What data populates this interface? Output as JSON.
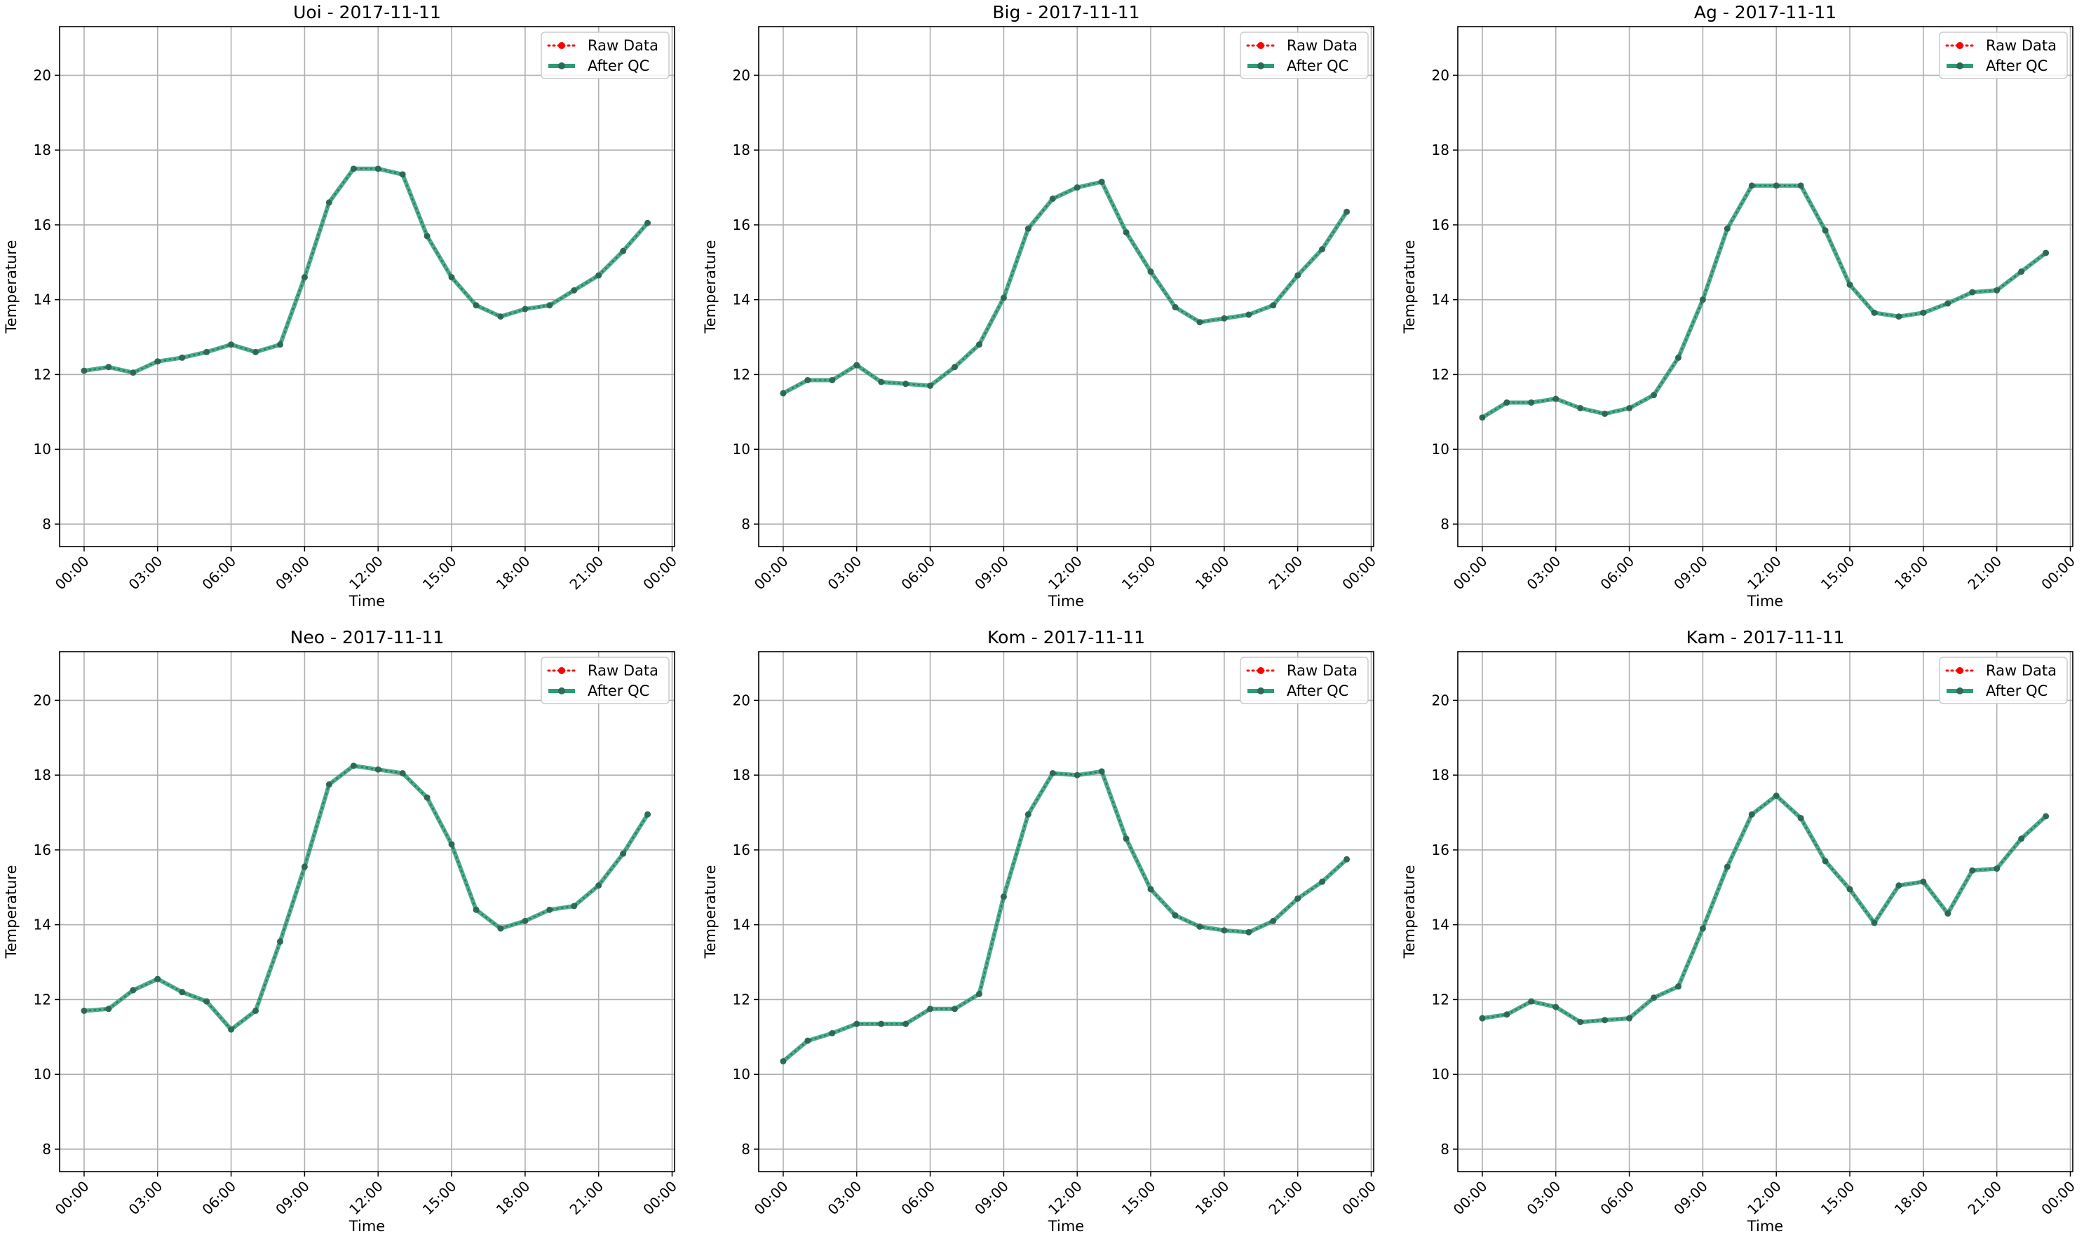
{
  "figure": {
    "axes_style": {
      "ylim": [
        7.4,
        21.3
      ],
      "yticks": [
        8,
        10,
        12,
        14,
        16,
        18,
        20
      ],
      "xlim_hours": [
        -1,
        24.1
      ],
      "xtick_hours": [
        0,
        3,
        6,
        9,
        12,
        15,
        18,
        21,
        24
      ],
      "xtick_labels": [
        "00:00",
        "03:00",
        "06:00",
        "09:00",
        "12:00",
        "15:00",
        "18:00",
        "21:00",
        "00:00"
      ],
      "xlabel": "Time",
      "ylabel": "Temperature",
      "grid": true,
      "legend_placement": "top-right",
      "raw_color": "#ff0000",
      "qc_color": "#2a9d78",
      "marker_color": "#2e6b55"
    },
    "legend": {
      "raw_label": "Raw Data",
      "qc_label": "After QC"
    }
  },
  "chart_data": [
    {
      "type": "line",
      "title": "Uoi - 2017-11-11",
      "xlabel": "Time",
      "ylabel": "Temperature",
      "x": [
        "00:00",
        "01:00",
        "02:00",
        "03:00",
        "04:00",
        "05:00",
        "06:00",
        "07:00",
        "08:00",
        "09:00",
        "10:00",
        "11:00",
        "12:00",
        "13:00",
        "14:00",
        "15:00",
        "16:00",
        "17:00",
        "18:00",
        "19:00",
        "20:00",
        "21:00",
        "22:00",
        "23:00"
      ],
      "series": [
        {
          "name": "Raw Data",
          "values": [
            12.1,
            12.2,
            12.05,
            12.35,
            12.45,
            12.6,
            12.8,
            12.6,
            12.8,
            14.6,
            16.6,
            17.5,
            17.5,
            17.35,
            15.7,
            14.6,
            13.85,
            13.55,
            13.75,
            13.85,
            14.25,
            14.65,
            15.3,
            16.05
          ]
        },
        {
          "name": "After QC",
          "values": [
            12.1,
            12.2,
            12.05,
            12.35,
            12.45,
            12.6,
            12.8,
            12.6,
            12.8,
            14.6,
            16.6,
            17.5,
            17.5,
            17.35,
            15.7,
            14.6,
            13.85,
            13.55,
            13.75,
            13.85,
            14.25,
            14.65,
            15.3,
            16.05
          ]
        }
      ]
    },
    {
      "type": "line",
      "title": "Big - 2017-11-11",
      "xlabel": "Time",
      "ylabel": "Temperature",
      "x": [
        "00:00",
        "01:00",
        "02:00",
        "03:00",
        "04:00",
        "05:00",
        "06:00",
        "07:00",
        "08:00",
        "09:00",
        "10:00",
        "11:00",
        "12:00",
        "13:00",
        "14:00",
        "15:00",
        "16:00",
        "17:00",
        "18:00",
        "19:00",
        "20:00",
        "21:00",
        "22:00",
        "23:00"
      ],
      "series": [
        {
          "name": "Raw Data",
          "values": [
            11.5,
            11.85,
            11.85,
            12.25,
            11.8,
            11.75,
            11.7,
            12.2,
            12.8,
            14.05,
            15.9,
            16.7,
            17.0,
            17.15,
            15.8,
            14.75,
            13.8,
            13.4,
            13.5,
            13.6,
            13.85,
            14.65,
            15.35,
            16.35
          ]
        },
        {
          "name": "After QC",
          "values": [
            11.5,
            11.85,
            11.85,
            12.25,
            11.8,
            11.75,
            11.7,
            12.2,
            12.8,
            14.05,
            15.9,
            16.7,
            17.0,
            17.15,
            15.8,
            14.75,
            13.8,
            13.4,
            13.5,
            13.6,
            13.85,
            14.65,
            15.35,
            16.35
          ]
        }
      ]
    },
    {
      "type": "line",
      "title": "Ag - 2017-11-11",
      "xlabel": "Time",
      "ylabel": "Temperature",
      "x": [
        "00:00",
        "01:00",
        "02:00",
        "03:00",
        "04:00",
        "05:00",
        "06:00",
        "07:00",
        "08:00",
        "09:00",
        "10:00",
        "11:00",
        "12:00",
        "13:00",
        "14:00",
        "15:00",
        "16:00",
        "17:00",
        "18:00",
        "19:00",
        "20:00",
        "21:00",
        "22:00",
        "23:00"
      ],
      "series": [
        {
          "name": "Raw Data",
          "values": [
            10.85,
            11.25,
            11.25,
            11.35,
            11.1,
            10.95,
            11.1,
            11.45,
            12.45,
            14.0,
            15.9,
            17.05,
            17.05,
            17.05,
            15.85,
            14.4,
            13.65,
            13.55,
            13.65,
            13.9,
            14.2,
            14.25,
            14.75,
            15.25
          ]
        },
        {
          "name": "After QC",
          "values": [
            10.85,
            11.25,
            11.25,
            11.35,
            11.1,
            10.95,
            11.1,
            11.45,
            12.45,
            14.0,
            15.9,
            17.05,
            17.05,
            17.05,
            15.85,
            14.4,
            13.65,
            13.55,
            13.65,
            13.9,
            14.2,
            14.25,
            14.75,
            15.25
          ]
        }
      ]
    },
    {
      "type": "line",
      "title": "Neo - 2017-11-11",
      "xlabel": "Time",
      "ylabel": "Temperature",
      "x": [
        "00:00",
        "01:00",
        "02:00",
        "03:00",
        "04:00",
        "05:00",
        "06:00",
        "07:00",
        "08:00",
        "09:00",
        "10:00",
        "11:00",
        "12:00",
        "13:00",
        "14:00",
        "15:00",
        "16:00",
        "17:00",
        "18:00",
        "19:00",
        "20:00",
        "21:00",
        "22:00",
        "23:00"
      ],
      "series": [
        {
          "name": "Raw Data",
          "values": [
            11.7,
            11.75,
            12.25,
            12.55,
            12.2,
            11.95,
            11.2,
            11.7,
            13.55,
            15.55,
            17.75,
            18.25,
            18.15,
            18.05,
            17.4,
            16.15,
            14.4,
            13.9,
            14.1,
            14.4,
            14.5,
            15.05,
            15.9,
            16.95
          ]
        },
        {
          "name": "After QC",
          "values": [
            11.7,
            11.75,
            12.25,
            12.55,
            12.2,
            11.95,
            11.2,
            11.7,
            13.55,
            15.55,
            17.75,
            18.25,
            18.15,
            18.05,
            17.4,
            16.15,
            14.4,
            13.9,
            14.1,
            14.4,
            14.5,
            15.05,
            15.9,
            16.95
          ]
        }
      ]
    },
    {
      "type": "line",
      "title": "Kom - 2017-11-11",
      "xlabel": "Time",
      "ylabel": "Temperature",
      "x": [
        "00:00",
        "01:00",
        "02:00",
        "03:00",
        "04:00",
        "05:00",
        "06:00",
        "07:00",
        "08:00",
        "09:00",
        "10:00",
        "11:00",
        "12:00",
        "13:00",
        "14:00",
        "15:00",
        "16:00",
        "17:00",
        "18:00",
        "19:00",
        "20:00",
        "21:00",
        "22:00",
        "23:00"
      ],
      "series": [
        {
          "name": "Raw Data",
          "values": [
            10.35,
            10.9,
            11.1,
            11.35,
            11.35,
            11.35,
            11.75,
            11.75,
            12.15,
            14.75,
            16.95,
            18.05,
            18.0,
            18.1,
            16.3,
            14.95,
            14.25,
            13.95,
            13.85,
            13.8,
            14.1,
            14.7,
            15.15,
            15.75
          ]
        },
        {
          "name": "After QC",
          "values": [
            10.35,
            10.9,
            11.1,
            11.35,
            11.35,
            11.35,
            11.75,
            11.75,
            12.15,
            14.75,
            16.95,
            18.05,
            18.0,
            18.1,
            16.3,
            14.95,
            14.25,
            13.95,
            13.85,
            13.8,
            14.1,
            14.7,
            15.15,
            15.75
          ]
        }
      ]
    },
    {
      "type": "line",
      "title": "Kam - 2017-11-11",
      "xlabel": "Time",
      "ylabel": "Temperature",
      "x": [
        "00:00",
        "01:00",
        "02:00",
        "03:00",
        "04:00",
        "05:00",
        "06:00",
        "07:00",
        "08:00",
        "09:00",
        "10:00",
        "11:00",
        "12:00",
        "13:00",
        "14:00",
        "15:00",
        "16:00",
        "17:00",
        "18:00",
        "19:00",
        "20:00",
        "21:00",
        "22:00",
        "23:00"
      ],
      "series": [
        {
          "name": "Raw Data",
          "values": [
            11.5,
            11.6,
            11.95,
            11.8,
            11.4,
            11.45,
            11.5,
            12.05,
            12.35,
            13.9,
            15.55,
            16.95,
            17.45,
            16.85,
            15.7,
            14.95,
            14.05,
            15.05,
            15.15,
            14.3,
            15.45,
            15.5,
            16.3,
            16.9
          ]
        },
        {
          "name": "After QC",
          "values": [
            11.5,
            11.6,
            11.95,
            11.8,
            11.4,
            11.45,
            11.5,
            12.05,
            12.35,
            13.9,
            15.55,
            16.95,
            17.45,
            16.85,
            15.7,
            14.95,
            14.05,
            15.05,
            15.15,
            14.3,
            15.45,
            15.5,
            16.3,
            16.9
          ]
        }
      ]
    }
  ]
}
